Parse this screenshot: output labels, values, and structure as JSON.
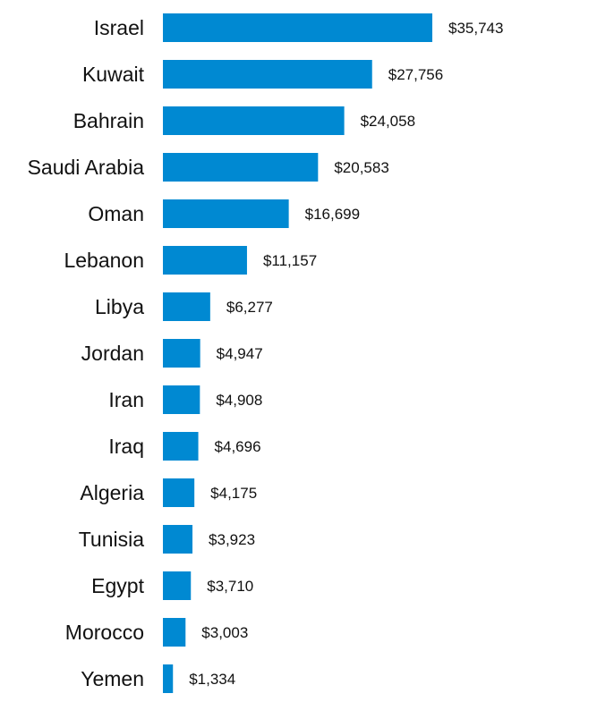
{
  "chart_data": {
    "type": "bar",
    "orientation": "horizontal",
    "categories": [
      "Israel",
      "Kuwait",
      "Bahrain",
      "Saudi Arabia",
      "Oman",
      "Lebanon",
      "Libya",
      "Jordan",
      "Iran",
      "Iraq",
      "Algeria",
      "Tunisia",
      "Egypt",
      "Morocco",
      "Yemen"
    ],
    "values": [
      35743,
      27756,
      24058,
      20583,
      16699,
      11157,
      6277,
      4947,
      4908,
      4696,
      4175,
      3923,
      3710,
      3003,
      1334
    ],
    "data_labels": [
      "$35,743",
      "$27,756",
      "$24,058",
      "$20,583",
      "$16,699",
      "$11,157",
      "$6,277",
      "$4,947",
      "$4,908",
      "$4,696",
      "$4,175",
      "$3,923",
      "$3,710",
      "$3,003",
      "$1,334"
    ],
    "title": "",
    "xlabel": "",
    "ylabel": "",
    "xlim": [
      0,
      35743
    ],
    "grid": false,
    "legend": "none",
    "bar_color": "#0089d2"
  }
}
